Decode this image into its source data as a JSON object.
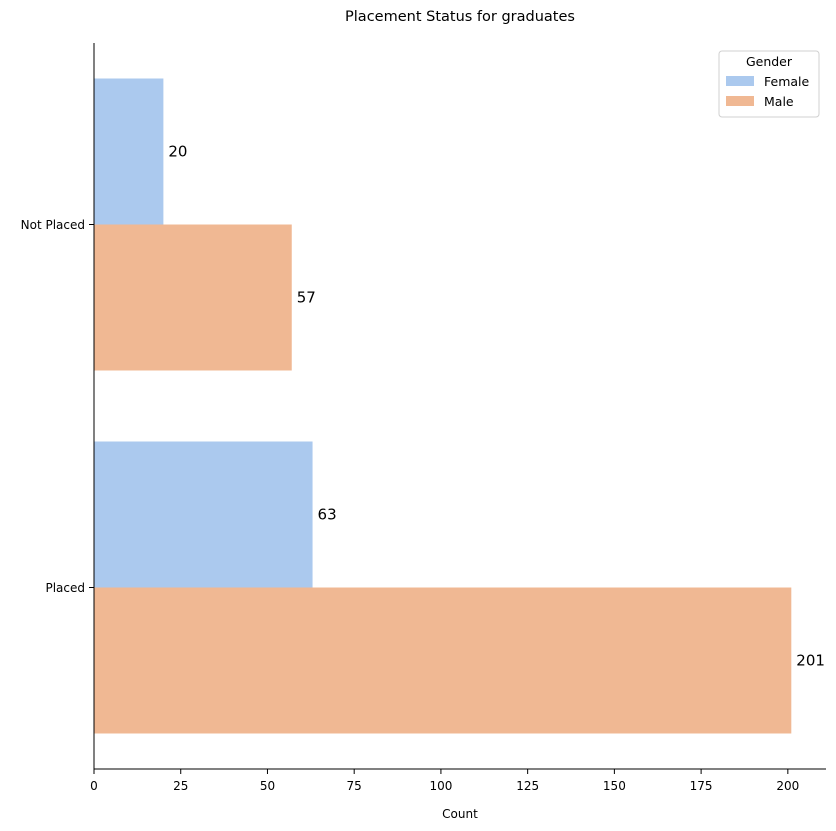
{
  "chart_data": {
    "type": "bar",
    "orientation": "horizontal",
    "title": "Placement Status for graduates",
    "xlabel": "Count",
    "ylabel": "",
    "categories": [
      "Not Placed",
      "Placed"
    ],
    "series": [
      {
        "name": "Female",
        "values": [
          20,
          63
        ],
        "color": "#abc9ee"
      },
      {
        "name": "Male",
        "values": [
          57,
          201
        ],
        "color": "#f0b893"
      }
    ],
    "xlim": [
      0,
      211
    ],
    "x_ticks": [
      0,
      25,
      50,
      75,
      100,
      125,
      150,
      175,
      200
    ],
    "data_labels": [
      "20",
      "63",
      "57",
      "201"
    ],
    "legend": {
      "title": "Gender",
      "placement": "top-right"
    },
    "grid": false
  }
}
